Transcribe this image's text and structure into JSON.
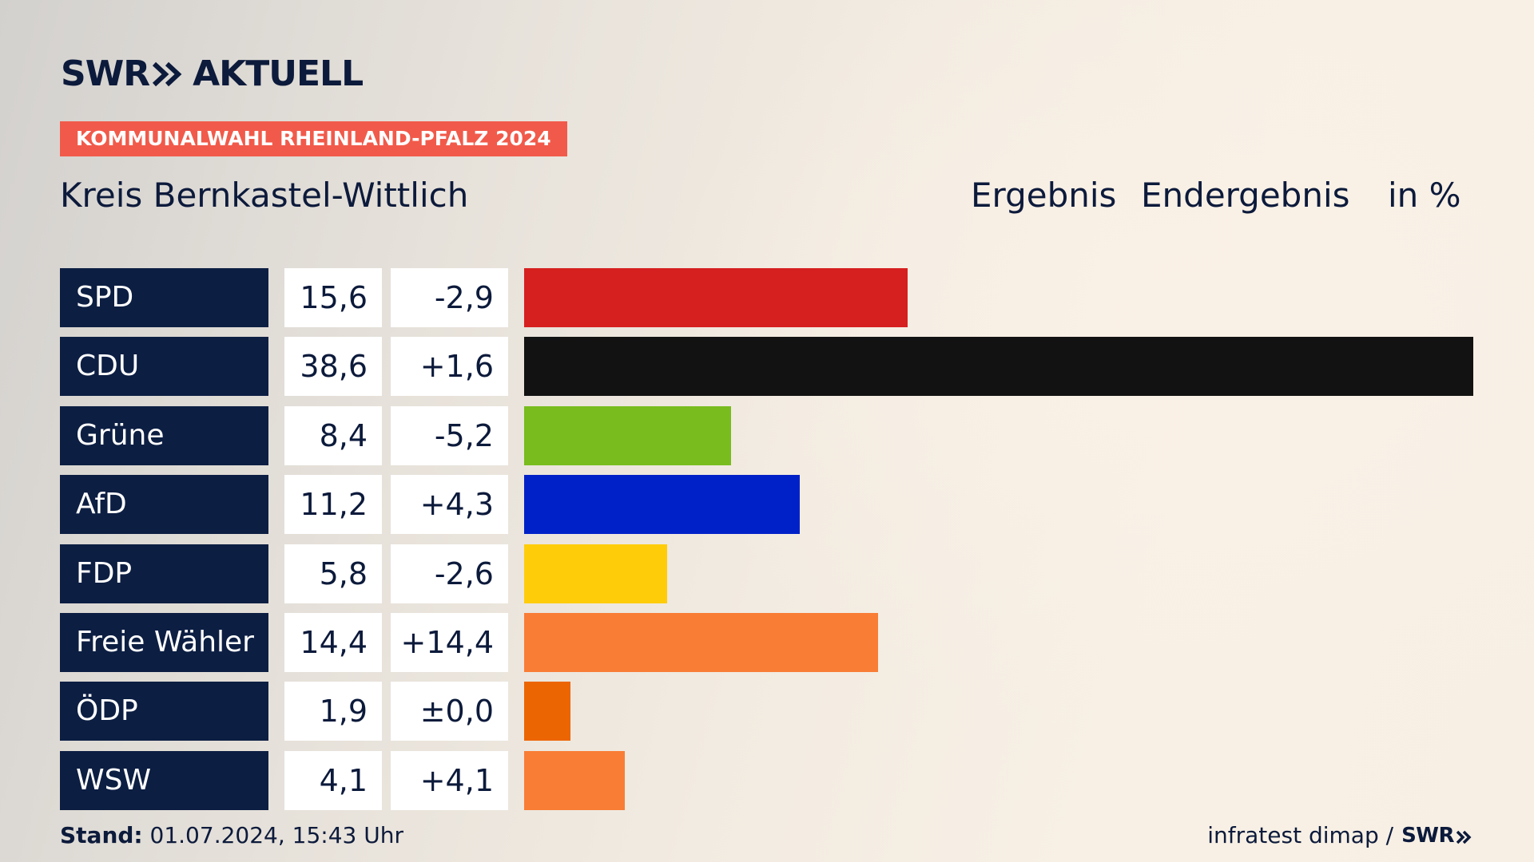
{
  "brand": {
    "logo_left": "SWR",
    "logo_right": "AKTUELL",
    "chevron_icon": "double-chevron-right-icon"
  },
  "banner": "KOMMUNALWAHL RHEINLAND-PFALZ 2024",
  "region": "Kreis Bernkastel-Wittlich",
  "headers": {
    "result": "Ergebnis",
    "status": "Endergebnis",
    "unit": "in %"
  },
  "footer": {
    "stand_label": "Stand:",
    "stand_value": "01.07.2024, 15:43 Uhr",
    "source": "infratest dimap /",
    "source_brand": "SWR"
  },
  "chart_data": {
    "type": "bar",
    "orientation": "horizontal",
    "categories": [
      "SPD",
      "CDU",
      "Grüne",
      "AfD",
      "FDP",
      "Freie Wähler",
      "ÖDP",
      "WSW"
    ],
    "values": [
      15.6,
      38.6,
      8.4,
      11.2,
      5.8,
      14.4,
      1.9,
      4.1
    ],
    "value_labels": [
      "15,6",
      "38,6",
      "8,4",
      "11,2",
      "5,8",
      "14,4",
      "1,9",
      "4,1"
    ],
    "changes": [
      "-2,9",
      "+1,6",
      "-5,2",
      "+4,3",
      "-2,6",
      "+14,4",
      "±0,0",
      "+4,1"
    ],
    "colors": [
      "#d61f1f",
      "#121212",
      "#78bc1e",
      "#0021c8",
      "#ffcc0a",
      "#f97d35",
      "#ec6503",
      "#f97d35"
    ],
    "xlim": [
      0,
      38.6
    ]
  }
}
